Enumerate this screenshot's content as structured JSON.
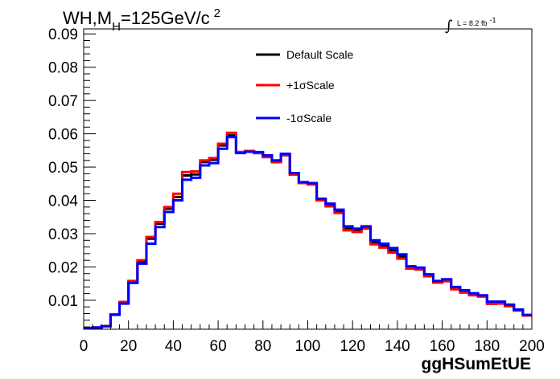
{
  "chart_data": {
    "type": "line",
    "title": {
      "prefix": "WH,M",
      "subscript": "H",
      "main": "=125GeV/c",
      "superscript": "2"
    },
    "luminosity": {
      "text": "L = 8.2 fb",
      "superscript": "-1"
    },
    "xlabel": "ggHSumEtUE",
    "ylabel": "",
    "xlim": [
      0,
      200
    ],
    "ylim": [
      0.0013,
      0.0915
    ],
    "x_ticks": [
      0,
      20,
      40,
      60,
      80,
      100,
      120,
      140,
      160,
      180,
      200
    ],
    "y_ticks": [
      0.01,
      0.02,
      0.03,
      0.04,
      0.05,
      0.06,
      0.07,
      0.08,
      0.09
    ],
    "x_tick_labels": [
      "0",
      "20",
      "40",
      "60",
      "80",
      "100",
      "120",
      "140",
      "160",
      "180",
      "200"
    ],
    "y_tick_labels": [
      "0.01",
      "0.02",
      "0.03",
      "0.04",
      "0.05",
      "0.06",
      "0.07",
      "0.08",
      "0.09"
    ],
    "grid": false,
    "legend_position": "top-center",
    "bin_edges": [
      0,
      4,
      8,
      12,
      16,
      20,
      24,
      28,
      32,
      36,
      40,
      44,
      48,
      52,
      56,
      60,
      64,
      68,
      72,
      76,
      80,
      84,
      88,
      92,
      96,
      100,
      104,
      108,
      112,
      116,
      120,
      124,
      128,
      132,
      136,
      140,
      144,
      148,
      152,
      156,
      160,
      164,
      168,
      172,
      176,
      180,
      184,
      188,
      192,
      196,
      200
    ],
    "series": [
      {
        "name": "Default Scale",
        "color": "#000000",
        "values": [
          0.0016,
          0.0018,
          0.0022,
          0.0057,
          0.0093,
          0.0155,
          0.0215,
          0.0285,
          0.033,
          0.0375,
          0.041,
          0.0475,
          0.0478,
          0.0515,
          0.0522,
          0.0565,
          0.0595,
          0.0545,
          0.0548,
          0.0542,
          0.053,
          0.0515,
          0.0535,
          0.0478,
          0.0452,
          0.0448,
          0.04,
          0.0385,
          0.0365,
          0.0315,
          0.031,
          0.0318,
          0.0275,
          0.0265,
          0.025,
          0.0232,
          0.0198,
          0.0195,
          0.0175,
          0.0155,
          0.016,
          0.0137,
          0.0127,
          0.0118,
          0.0113,
          0.0093,
          0.0093,
          0.0084,
          0.007,
          0.0055
        ]
      },
      {
        "name": "+1σScale",
        "color": "#ff0000",
        "values": [
          0.0016,
          0.0018,
          0.0022,
          0.0058,
          0.0095,
          0.0158,
          0.022,
          0.029,
          0.0335,
          0.038,
          0.042,
          0.0485,
          0.0487,
          0.052,
          0.0527,
          0.057,
          0.0603,
          0.0545,
          0.0548,
          0.0542,
          0.053,
          0.0515,
          0.0535,
          0.0478,
          0.0452,
          0.0448,
          0.04,
          0.0382,
          0.0362,
          0.031,
          0.0305,
          0.0315,
          0.0268,
          0.0258,
          0.0243,
          0.0225,
          0.0195,
          0.0192,
          0.0172,
          0.0153,
          0.0157,
          0.0133,
          0.0123,
          0.0115,
          0.0111,
          0.0089,
          0.009,
          0.0082,
          0.0069,
          0.0054
        ]
      },
      {
        "name": "-1σScale",
        "color": "#0000ff",
        "values": [
          0.0016,
          0.0018,
          0.0022,
          0.0056,
          0.009,
          0.0152,
          0.021,
          0.027,
          0.032,
          0.0365,
          0.04,
          0.0462,
          0.0468,
          0.0505,
          0.0512,
          0.0555,
          0.059,
          0.0542,
          0.0546,
          0.0545,
          0.0535,
          0.052,
          0.054,
          0.0482,
          0.0455,
          0.0452,
          0.0405,
          0.039,
          0.0372,
          0.0322,
          0.0315,
          0.0322,
          0.028,
          0.027,
          0.0257,
          0.0238,
          0.0202,
          0.0198,
          0.0178,
          0.0158,
          0.0163,
          0.014,
          0.013,
          0.0121,
          0.0115,
          0.0096,
          0.0096,
          0.0087,
          0.0072,
          0.0056
        ]
      }
    ]
  }
}
